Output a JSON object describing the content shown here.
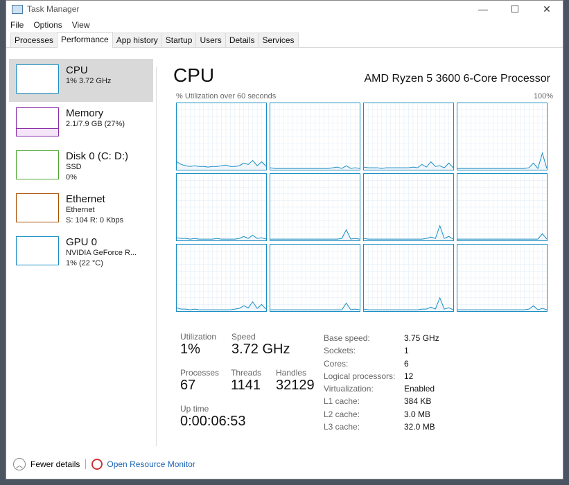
{
  "window": {
    "title": "Task Manager",
    "controls": [
      "—",
      "☐",
      "✕"
    ]
  },
  "menu": [
    "File",
    "Options",
    "View"
  ],
  "tabs": [
    {
      "label": "Processes"
    },
    {
      "label": "Performance",
      "active": true
    },
    {
      "label": "App history"
    },
    {
      "label": "Startup"
    },
    {
      "label": "Users"
    },
    {
      "label": "Details"
    },
    {
      "label": "Services"
    }
  ],
  "sidebar": [
    {
      "name": "CPU",
      "line1": "1% 3.72 GHz",
      "line2": "",
      "color": "#1a8ec4",
      "selected": true
    },
    {
      "name": "Memory",
      "line1": "2.1/7.9 GB (27%)",
      "line2": "",
      "color": "#8b2fa8"
    },
    {
      "name": "Disk 0 (C: D:)",
      "line1": "SSD",
      "line2": "0%",
      "color": "#4da633"
    },
    {
      "name": "Ethernet",
      "line1": "Ethernet",
      "line2": "S: 104 R: 0 Kbps",
      "color": "#a74f01"
    },
    {
      "name": "GPU 0",
      "line1": "NVIDIA GeForce R...",
      "line2": "1% (22 °C)",
      "color": "#1a8ec4"
    }
  ],
  "main": {
    "title": "CPU",
    "processor": "AMD Ryzen 5 3600 6-Core Processor",
    "graph_label": "% Utilization over 60 seconds",
    "graph_max": "100%",
    "accent": "#1a8ec4"
  },
  "cores": [
    [
      12,
      8,
      6,
      5,
      6,
      5,
      5,
      4,
      5,
      5,
      6,
      7,
      5,
      5,
      6,
      10,
      8,
      14,
      6,
      12,
      5
    ],
    [
      3,
      2,
      2,
      2,
      2,
      2,
      2,
      2,
      2,
      2,
      2,
      2,
      2,
      2,
      3,
      4,
      2,
      6,
      2,
      3,
      2
    ],
    [
      4,
      3,
      3,
      3,
      2,
      3,
      3,
      3,
      3,
      3,
      3,
      4,
      3,
      8,
      4,
      12,
      5,
      6,
      3,
      10,
      3
    ],
    [
      2,
      2,
      2,
      2,
      2,
      2,
      2,
      2,
      2,
      2,
      2,
      2,
      2,
      2,
      2,
      2,
      3,
      10,
      2,
      25,
      2
    ],
    [
      4,
      3,
      3,
      2,
      3,
      2,
      2,
      2,
      2,
      3,
      2,
      2,
      2,
      2,
      3,
      6,
      3,
      8,
      3,
      4,
      2
    ],
    [
      2,
      2,
      2,
      2,
      2,
      2,
      2,
      2,
      2,
      2,
      2,
      2,
      2,
      2,
      2,
      2,
      3,
      16,
      2,
      3,
      2
    ],
    [
      3,
      2,
      2,
      2,
      2,
      2,
      2,
      2,
      2,
      2,
      2,
      2,
      2,
      2,
      3,
      5,
      3,
      22,
      3,
      6,
      2
    ],
    [
      2,
      2,
      2,
      2,
      2,
      2,
      2,
      2,
      2,
      2,
      2,
      2,
      2,
      2,
      2,
      2,
      2,
      2,
      2,
      10,
      2
    ],
    [
      5,
      3,
      3,
      2,
      3,
      2,
      2,
      2,
      2,
      2,
      2,
      2,
      2,
      3,
      4,
      8,
      5,
      14,
      4,
      10,
      3
    ],
    [
      2,
      2,
      2,
      2,
      2,
      2,
      2,
      2,
      2,
      2,
      2,
      2,
      2,
      2,
      2,
      2,
      2,
      12,
      2,
      3,
      2
    ],
    [
      3,
      2,
      2,
      2,
      2,
      2,
      2,
      2,
      2,
      2,
      2,
      2,
      2,
      3,
      3,
      6,
      3,
      20,
      3,
      5,
      2
    ],
    [
      2,
      2,
      2,
      2,
      2,
      2,
      2,
      2,
      2,
      2,
      2,
      2,
      2,
      2,
      2,
      2,
      3,
      8,
      2,
      4,
      2
    ]
  ],
  "stats": {
    "utilization_label": "Utilization",
    "utilization": "1%",
    "speed_label": "Speed",
    "speed": "3.72 GHz",
    "processes_label": "Processes",
    "processes": "67",
    "threads_label": "Threads",
    "threads": "1141",
    "handles_label": "Handles",
    "handles": "32129",
    "uptime_label": "Up time",
    "uptime": "0:00:06:53"
  },
  "specs": [
    [
      "Base speed:",
      "3.75 GHz"
    ],
    [
      "Sockets:",
      "1"
    ],
    [
      "Cores:",
      "6"
    ],
    [
      "Logical processors:",
      "12"
    ],
    [
      "Virtualization:",
      "Enabled"
    ],
    [
      "L1 cache:",
      "384 KB"
    ],
    [
      "L2 cache:",
      "3.0 MB"
    ],
    [
      "L3 cache:",
      "32.0 MB"
    ]
  ],
  "footer": {
    "fewer": "Fewer details",
    "monitor": "Open Resource Monitor"
  }
}
